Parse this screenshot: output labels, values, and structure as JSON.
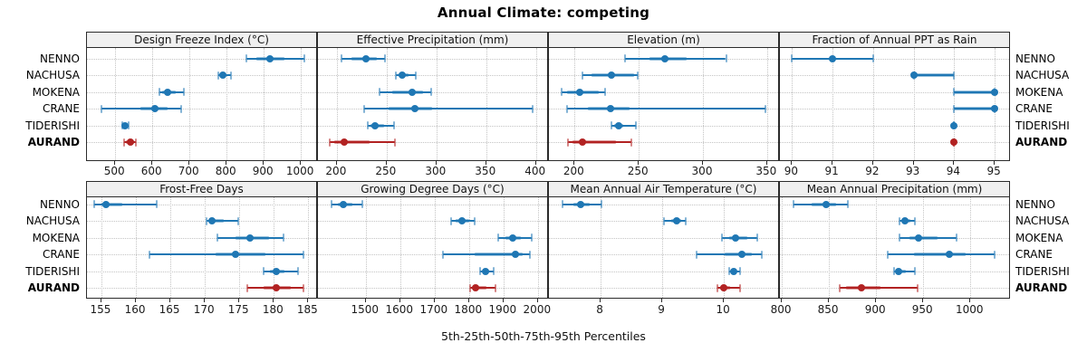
{
  "title": "Annual Climate: competing",
  "xlabel": "5th-25th-50th-75th-95th Percentiles",
  "sites": [
    "NENNO",
    "NACHUSA",
    "MOKENA",
    "CRANE",
    "TIDERISHI",
    "AURAND"
  ],
  "highlight_site": "AURAND",
  "colors": {
    "series_blue": "#1f77b4",
    "series_highlight_red": "#b22222",
    "band_blue": "rgba(31,119,180,0.45)",
    "band_red": "rgba(178,34,34,0.45)",
    "cap_blue": "rgba(31,119,180,0.55)",
    "cap_red": "rgba(178,34,34,0.55)",
    "panel_header_bg": "#f0f0f0",
    "panel_border": "#2b2b2b",
    "gridline": "#c4c4c4"
  },
  "chart_data": {
    "type": "dot-whisker percentile trellis",
    "percentile_labels": [
      "5th",
      "25th",
      "50th",
      "75th",
      "95th"
    ],
    "legend_position": "none",
    "grid": "dotted",
    "panels": [
      {
        "title": "Design Freeze Index (°C)",
        "row": 0,
        "col": 0,
        "xlim": [
          424,
          1046
        ],
        "ticks": [
          500,
          600,
          700,
          800,
          900,
          1000
        ],
        "percentiles": [
          [
            853,
            880,
            917,
            955,
            1010
          ],
          [
            778,
            783,
            790,
            800,
            812
          ],
          [
            620,
            626,
            641,
            663,
            686
          ],
          [
            463,
            568,
            607,
            641,
            678
          ],
          [
            518,
            522,
            527,
            531,
            535
          ],
          [
            524,
            529,
            541,
            550,
            556
          ]
        ]
      },
      {
        "title": "Effective Precipitation (mm)",
        "row": 0,
        "col": 1,
        "xlim": [
          181,
          413
        ],
        "ticks": [
          200,
          250,
          300,
          350,
          400
        ],
        "percentiles": [
          [
            205,
            215,
            229,
            240,
            248
          ],
          [
            259,
            262,
            266,
            272,
            279
          ],
          [
            243,
            256,
            276,
            287,
            295
          ],
          [
            227,
            252,
            278,
            296,
            397
          ],
          [
            231,
            234,
            238,
            247,
            257
          ],
          [
            193,
            197,
            207,
            233,
            258
          ]
        ]
      },
      {
        "title": "Elevation (m)",
        "row": 0,
        "col": 2,
        "xlim": [
          180,
          360
        ],
        "ticks": [
          200,
          250,
          300,
          350
        ],
        "percentiles": [
          [
            239,
            258,
            270,
            287,
            318
          ],
          [
            206,
            213,
            229,
            246,
            249
          ],
          [
            190,
            194,
            204,
            219,
            224
          ],
          [
            194,
            210,
            228,
            243,
            349
          ],
          [
            229,
            231,
            234,
            238,
            248
          ],
          [
            195,
            198,
            206,
            232,
            244
          ]
        ]
      },
      {
        "title": "Fraction of Annual PPT as Rain",
        "row": 0,
        "col": 3,
        "xlim": [
          89.7,
          95.4
        ],
        "ticks": [
          90,
          91,
          92,
          93,
          94,
          95
        ],
        "percentiles": [
          [
            90,
            91,
            91,
            91,
            92
          ],
          [
            93,
            93,
            93,
            94,
            94
          ],
          [
            94,
            94,
            95,
            95,
            95
          ],
          [
            94,
            94,
            95,
            95,
            95
          ],
          [
            94,
            94,
            94,
            94,
            94
          ],
          [
            94,
            94,
            94,
            94,
            94
          ]
        ]
      },
      {
        "title": "Frost-Free Days",
        "row": 1,
        "col": 0,
        "xlim": [
          152.9,
          186.4
        ],
        "ticks": [
          155,
          160,
          165,
          170,
          175,
          180,
          185
        ],
        "percentiles": [
          [
            154,
            155,
            155.7,
            158,
            163
          ],
          [
            170.3,
            170.7,
            171,
            172.8,
            174.8
          ],
          [
            171.8,
            174.5,
            176.5,
            179.3,
            181.4
          ],
          [
            162,
            171.5,
            174.5,
            178.8,
            184.3
          ],
          [
            178.5,
            179.5,
            180.4,
            181.6,
            183.5
          ],
          [
            176.2,
            178.5,
            180.4,
            182.5,
            184.3
          ]
        ]
      },
      {
        "title": "Growing Degree Days (°C)",
        "row": 1,
        "col": 1,
        "xlim": [
          1361,
          2032
        ],
        "ticks": [
          1500,
          1600,
          1700,
          1800,
          1900,
          2000
        ],
        "percentiles": [
          [
            1400,
            1418,
            1435,
            1460,
            1490
          ],
          [
            1747,
            1762,
            1779,
            1800,
            1816
          ],
          [
            1884,
            1905,
            1926,
            1950,
            1982
          ],
          [
            1725,
            1815,
            1935,
            1955,
            1976
          ],
          [
            1833,
            1841,
            1848,
            1858,
            1872
          ],
          [
            1803,
            1808,
            1818,
            1850,
            1878
          ]
        ]
      },
      {
        "title": "Mean Annual Air Temperature (°C)",
        "row": 1,
        "col": 2,
        "xlim": [
          7.16,
          10.91
        ],
        "ticks": [
          8,
          9,
          10
        ],
        "percentiles": [
          [
            7.38,
            7.55,
            7.68,
            7.82,
            8.02
          ],
          [
            9.03,
            9.14,
            9.23,
            9.31,
            9.38
          ],
          [
            9.97,
            10.08,
            10.19,
            10.38,
            10.54
          ],
          [
            9.56,
            10.02,
            10.29,
            10.45,
            10.62
          ],
          [
            10.08,
            10.12,
            10.16,
            10.21,
            10.26
          ],
          [
            9.9,
            9.94,
            10.0,
            10.1,
            10.26
          ]
        ]
      },
      {
        "title": "Mean Annual Precipitation (mm)",
        "row": 1,
        "col": 3,
        "xlim": [
          798,
          1043
        ],
        "ticks": [
          800,
          850,
          900,
          950,
          1000
        ],
        "percentiles": [
          [
            812,
            832,
            847,
            858,
            870
          ],
          [
            925,
            928,
            931,
            936,
            941
          ],
          [
            925,
            935,
            945,
            965,
            985
          ],
          [
            912,
            940,
            978,
            995,
            1026
          ],
          [
            919,
            921,
            924,
            932,
            941
          ],
          [
            861,
            868,
            884,
            905,
            944
          ]
        ]
      }
    ]
  }
}
